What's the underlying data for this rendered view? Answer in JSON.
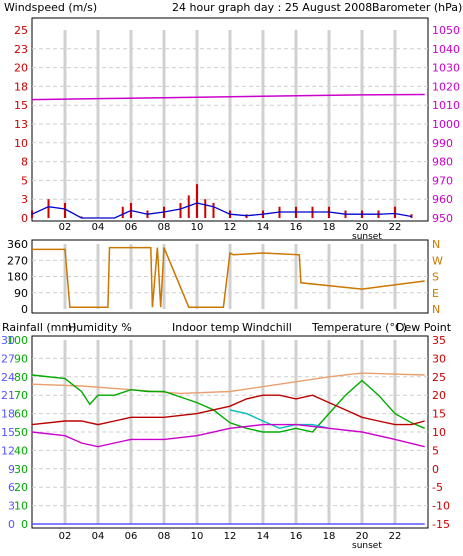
{
  "title": "24 hour graph day : 25 August 2008",
  "sunset_label": "sunset",
  "hours": [
    "02",
    "04",
    "06",
    "08",
    "10",
    "12",
    "14",
    "16",
    "18",
    "20",
    "22"
  ],
  "colors": {
    "wind": "#cc0000",
    "gust_avg": "#0000cc",
    "baro": "#cc00cc",
    "dir": "#cc7700",
    "rain": "#5555ff",
    "hum": "#00aa00",
    "indoor": "#e8a070",
    "chill": "#00bbbb",
    "temp": "#bb0000",
    "dew": "#cc00cc",
    "right_axis": "#cc0000"
  },
  "chart_data": [
    {
      "type": "line",
      "panel": "wind_baro",
      "left_label": "Windspeed (m/s)",
      "right_label": "Barometer (hPa)",
      "left_ticks": [
        "25",
        "23",
        "20",
        "18",
        "15",
        "13",
        "10",
        "8",
        "5",
        "3",
        "0"
      ],
      "right_ticks": [
        "1050",
        "1040",
        "1030",
        "1020",
        "1010",
        "1000",
        "990",
        "980",
        "970",
        "960",
        "950"
      ],
      "ylim_left": [
        0,
        25
      ],
      "ylim_right": [
        950,
        1050
      ],
      "series": [
        {
          "key": "wind",
          "x": [
            0,
            1,
            2,
            3,
            4,
            5,
            5.5,
            6,
            7,
            8,
            9,
            9.5,
            10,
            10.5,
            11,
            12,
            13,
            14,
            15,
            16,
            17,
            18,
            19,
            20,
            21,
            22,
            23
          ],
          "values": [
            1,
            2.5,
            2,
            0.2,
            0,
            0,
            1.5,
            2,
            1,
            1.5,
            2,
            3,
            4.5,
            2.5,
            2,
            1,
            0.5,
            1,
            1.5,
            1.5,
            1.5,
            1.5,
            1,
            1,
            1,
            1.5,
            0.5
          ]
        },
        {
          "key": "gust_avg",
          "x": [
            0,
            1,
            2,
            3,
            4,
            5,
            6,
            7,
            8,
            9,
            10,
            11,
            12,
            13,
            14,
            15,
            16,
            17,
            18,
            19,
            20,
            21,
            22,
            23
          ],
          "values": [
            0.5,
            1.5,
            1.2,
            0,
            0,
            0,
            1,
            0.5,
            0.8,
            1.2,
            2,
            1.5,
            0.5,
            0.3,
            0.5,
            0.8,
            0.8,
            0.8,
            0.8,
            0.5,
            0.5,
            0.5,
            0.6,
            0.2
          ]
        },
        {
          "key": "baro",
          "x": [
            0,
            4,
            8,
            12,
            16,
            20,
            23.8
          ],
          "values": [
            1013,
            1013.5,
            1014,
            1014.5,
            1015,
            1015.5,
            1015.7
          ]
        }
      ]
    },
    {
      "type": "line",
      "panel": "direction",
      "left_ticks": [
        "360",
        "270",
        "180",
        "90",
        "0"
      ],
      "right_ticks": [
        "N",
        "W",
        "S",
        "E",
        "N"
      ],
      "ylim": [
        0,
        360
      ],
      "series": [
        {
          "key": "dir",
          "x": [
            0,
            2,
            2.3,
            2.5,
            4.6,
            4.7,
            7.2,
            7.3,
            7.6,
            7.8,
            8.0,
            9.5,
            9.6,
            11.5,
            11.6,
            12.0,
            12.2,
            14,
            16.2,
            16.3,
            20,
            23.8
          ],
          "values": [
            330,
            330,
            10,
            10,
            10,
            340,
            340,
            10,
            340,
            10,
            340,
            10,
            10,
            10,
            10,
            310,
            300,
            310,
            300,
            145,
            110,
            155
          ]
        }
      ]
    },
    {
      "type": "line",
      "panel": "temp_hum",
      "labels": {
        "rain": "Rainfall (mm)",
        "hum": "Humidity %",
        "indoor": "Indoor temp",
        "chill": "Windchill",
        "temp": "Temperature (°C)",
        "dew": "Dew Point"
      },
      "hum_ticks": [
        "100",
        "90",
        "80",
        "70",
        "60",
        "50",
        "40",
        "30",
        "20",
        "10",
        "0"
      ],
      "rain_ticks": [
        "30",
        "27",
        "24",
        "21",
        "18",
        "15",
        "12",
        "9",
        "6",
        "3",
        "0"
      ],
      "temp_ticks": [
        "35",
        "30",
        "25",
        "20",
        "15",
        "10",
        "5",
        "0",
        "-5",
        "-10",
        "-15"
      ],
      "ylim_hum": [
        0,
        100
      ],
      "ylim_temp": [
        -15,
        35
      ],
      "series": [
        {
          "key": "indoor",
          "x": [
            0,
            3,
            6,
            9,
            12,
            15,
            18,
            20,
            23.8
          ],
          "values": [
            23,
            22.5,
            21.5,
            20.5,
            21,
            23,
            25,
            26,
            25.5
          ]
        },
        {
          "key": "hum",
          "x": [
            0,
            2,
            3,
            3.5,
            4,
            5,
            6,
            7,
            8,
            9,
            10,
            11,
            12,
            13,
            14,
            15,
            16,
            17,
            18,
            19,
            20,
            21,
            22,
            23,
            23.8
          ],
          "values": [
            81,
            79,
            72,
            65,
            70,
            70,
            73,
            72,
            72,
            69,
            66,
            62,
            55,
            52,
            50,
            50,
            52,
            50,
            60,
            70,
            78,
            70,
            60,
            55,
            52
          ]
        },
        {
          "key": "temp",
          "x": [
            0,
            2,
            3,
            4,
            5,
            6,
            8,
            10,
            12,
            13,
            14,
            15,
            16,
            17,
            18,
            19,
            20,
            21,
            22,
            23,
            23.8
          ],
          "values": [
            12,
            13,
            13,
            12,
            13,
            14,
            14,
            15,
            17,
            19,
            20,
            20,
            19,
            20,
            18,
            16,
            14,
            13,
            12,
            12,
            13
          ]
        },
        {
          "key": "chill",
          "x": [
            12,
            13,
            14,
            15,
            16,
            17,
            18
          ],
          "values": [
            16,
            15,
            13,
            11,
            12,
            12,
            11
          ]
        },
        {
          "key": "dew",
          "x": [
            0,
            2,
            3,
            4,
            5,
            6,
            8,
            10,
            12,
            14,
            16,
            18,
            20,
            22,
            23.8
          ],
          "values": [
            10,
            9,
            7,
            6,
            7,
            8,
            8,
            9,
            11,
            12,
            12,
            11,
            10,
            8,
            6
          ]
        },
        {
          "key": "rain",
          "x": [
            0,
            23.8
          ],
          "values": [
            0,
            0
          ]
        }
      ]
    }
  ]
}
